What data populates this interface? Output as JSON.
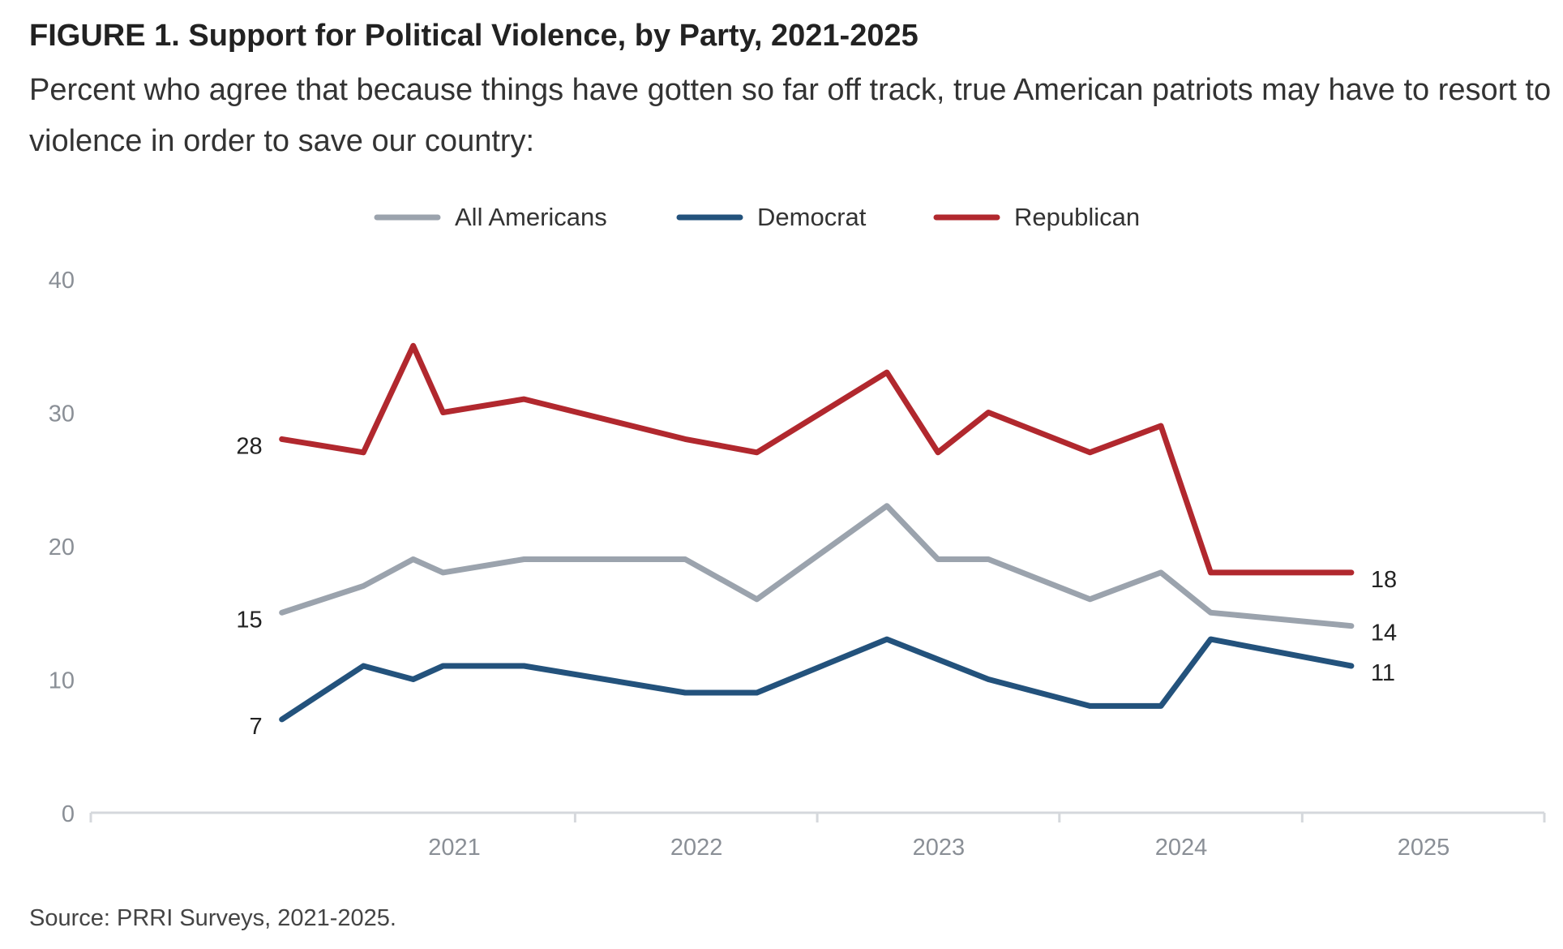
{
  "header": {
    "figure_title": "FIGURE 1.  Support for Political Violence, by Party, 2021-2025",
    "subtitle": "Percent who agree that because things have gotten so far off track, true American patriots may have to resort to violence in order to save our country:"
  },
  "footer": {
    "source": "Source: PRRI Surveys, 2021-2025."
  },
  "chart_data": {
    "type": "line",
    "title": "FIGURE 1.  Support for Political Violence, by Party, 2021-2025",
    "subtitle": "Percent who agree that because things have gotten so far off track, true American patriots may have to resort to violence in order to save our country:",
    "xlabel": "",
    "ylabel": "",
    "x_ticks": [
      "2021",
      "2022",
      "2023",
      "2024",
      "2025"
    ],
    "xlim": [
      "2020-01-01",
      "2025-12-31"
    ],
    "ylim": [
      0,
      40
    ],
    "y_ticks": [
      0,
      10,
      20,
      30,
      40
    ],
    "grid": false,
    "legend_position": "top-center",
    "series": [
      {
        "name": "All Americans",
        "color": "#9ba3ad",
        "points": [
          {
            "date": "2020-10-15",
            "value": 15
          },
          {
            "date": "2021-02-15",
            "value": 17
          },
          {
            "date": "2021-05-01",
            "value": 19
          },
          {
            "date": "2021-06-15",
            "value": 18
          },
          {
            "date": "2021-10-15",
            "value": 19
          },
          {
            "date": "2022-06-15",
            "value": 19
          },
          {
            "date": "2022-10-01",
            "value": 16
          },
          {
            "date": "2023-04-15",
            "value": 23
          },
          {
            "date": "2023-07-01",
            "value": 19
          },
          {
            "date": "2023-09-15",
            "value": 19
          },
          {
            "date": "2024-02-15",
            "value": 16
          },
          {
            "date": "2024-06-01",
            "value": 18
          },
          {
            "date": "2024-08-15",
            "value": 15
          },
          {
            "date": "2025-03-15",
            "value": 14
          }
        ]
      },
      {
        "name": "Democrat",
        "color": "#23527c",
        "points": [
          {
            "date": "2020-10-15",
            "value": 7
          },
          {
            "date": "2021-02-15",
            "value": 11
          },
          {
            "date": "2021-05-01",
            "value": 10
          },
          {
            "date": "2021-06-15",
            "value": 11
          },
          {
            "date": "2021-10-15",
            "value": 11
          },
          {
            "date": "2022-06-15",
            "value": 9
          },
          {
            "date": "2022-10-01",
            "value": 9
          },
          {
            "date": "2023-04-15",
            "value": 13
          },
          {
            "date": "2023-09-15",
            "value": 10
          },
          {
            "date": "2024-02-15",
            "value": 8
          },
          {
            "date": "2024-06-01",
            "value": 8
          },
          {
            "date": "2024-08-15",
            "value": 13
          },
          {
            "date": "2025-03-15",
            "value": 11
          }
        ]
      },
      {
        "name": "Republican",
        "color": "#b1282e",
        "points": [
          {
            "date": "2020-10-15",
            "value": 28
          },
          {
            "date": "2021-02-15",
            "value": 27
          },
          {
            "date": "2021-05-01",
            "value": 35
          },
          {
            "date": "2021-06-15",
            "value": 30
          },
          {
            "date": "2021-10-15",
            "value": 31
          },
          {
            "date": "2022-06-15",
            "value": 28
          },
          {
            "date": "2022-10-01",
            "value": 27
          },
          {
            "date": "2023-04-15",
            "value": 33
          },
          {
            "date": "2023-07-01",
            "value": 27
          },
          {
            "date": "2023-09-15",
            "value": 30
          },
          {
            "date": "2024-02-15",
            "value": 27
          },
          {
            "date": "2024-06-01",
            "value": 29
          },
          {
            "date": "2024-08-15",
            "value": 18
          },
          {
            "date": "2025-03-15",
            "value": 18
          }
        ]
      }
    ],
    "annotations": [
      {
        "series": "Republican",
        "position": "start",
        "text": "28"
      },
      {
        "series": "All Americans",
        "position": "start",
        "text": "15"
      },
      {
        "series": "Democrat",
        "position": "start",
        "text": "7"
      },
      {
        "series": "Republican",
        "position": "end",
        "text": "18"
      },
      {
        "series": "All Americans",
        "position": "end",
        "text": "14"
      },
      {
        "series": "Democrat",
        "position": "end",
        "text": "11"
      }
    ]
  }
}
